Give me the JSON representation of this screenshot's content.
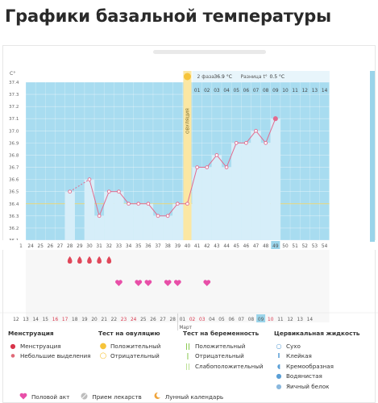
{
  "page": {
    "title": "Графики базальной температуры"
  },
  "header": {
    "phase_label": "2 фаза",
    "phase_temp": "36.9 °C",
    "diff_label": "Разница t°",
    "diff_value": "0.5 °C",
    "unit": "C°",
    "ovulation_label": "ОВУЛЯЦИЯ"
  },
  "colors": {
    "cycle_bg": "#a8dcf0",
    "bar_fill": "#d6eef9",
    "ovulation": "#fbe7a3",
    "line": "#e26b8e",
    "period": "#e0485a",
    "sex": "#e84fa8",
    "coverline": "#e9d77a"
  },
  "chart_data": {
    "type": "line",
    "ylabel": "C°",
    "ylim": [
      36.1,
      37.4
    ],
    "yticks": [
      "37.4",
      "37.3",
      "37.2",
      "37.1",
      "37.0",
      "36.9",
      "36.8",
      "36.7",
      "36.6",
      "36.5",
      "36.4",
      "36.3",
      "36.2",
      "36.1"
    ],
    "cycle_days": [
      "24",
      "25",
      "26",
      "27",
      "28",
      "29",
      "30",
      "31",
      "32",
      "33",
      "34",
      "35",
      "36",
      "37",
      "38",
      "39",
      "40",
      "41",
      "42",
      "43",
      "44",
      "45",
      "46",
      "47",
      "48",
      "49",
      "50",
      "51",
      "52",
      "53",
      "54"
    ],
    "phase_days": [
      "01",
      "02",
      "03",
      "04",
      "05",
      "06",
      "07",
      "08",
      "09",
      "10",
      "11",
      "12",
      "13",
      "14"
    ],
    "highlight_day": "49",
    "ovulation_day": "40",
    "series": [
      {
        "x": [
          "28",
          "29",
          "30",
          "31",
          "32",
          "33",
          "34",
          "35",
          "36",
          "37",
          "38",
          "39",
          "40",
          "41",
          "42",
          "43",
          "44",
          "45",
          "46",
          "47",
          "48",
          "49"
        ],
        "values": [
          36.5,
          null,
          36.6,
          36.3,
          36.5,
          36.5,
          36.4,
          36.4,
          36.4,
          36.3,
          36.3,
          36.4,
          36.4,
          36.7,
          36.7,
          36.8,
          36.7,
          36.9,
          36.9,
          37.0,
          36.9,
          37.1
        ]
      }
    ],
    "coverline": 36.4,
    "period_days": [
      "28",
      "29",
      "30",
      "31",
      "32"
    ],
    "sex_days": [
      "33",
      "35",
      "36",
      "38",
      "39",
      "42"
    ],
    "date_labels": [
      {
        "t": "12",
        "c": "n"
      },
      {
        "t": "13",
        "c": "n"
      },
      {
        "t": "14",
        "c": "n"
      },
      {
        "t": "15",
        "c": "n"
      },
      {
        "t": "16",
        "c": "r"
      },
      {
        "t": "17",
        "c": "r"
      },
      {
        "t": "18",
        "c": "n"
      },
      {
        "t": "19",
        "c": "n"
      },
      {
        "t": "20",
        "c": "n"
      },
      {
        "t": "21",
        "c": "n"
      },
      {
        "t": "22",
        "c": "n"
      },
      {
        "t": "23",
        "c": "r"
      },
      {
        "t": "24",
        "c": "r"
      },
      {
        "t": "25",
        "c": "n"
      },
      {
        "t": "26",
        "c": "n"
      },
      {
        "t": "27",
        "c": "n"
      },
      {
        "t": "28",
        "c": "n"
      },
      {
        "t": "01",
        "c": "n"
      },
      {
        "t": "02",
        "c": "r"
      },
      {
        "t": "03",
        "c": "r"
      },
      {
        "t": "04",
        "c": "n"
      },
      {
        "t": "05",
        "c": "n"
      },
      {
        "t": "06",
        "c": "n"
      },
      {
        "t": "07",
        "c": "n"
      },
      {
        "t": "08",
        "c": "n"
      },
      {
        "t": "09",
        "c": "h"
      },
      {
        "t": "10",
        "c": "r"
      },
      {
        "t": "11",
        "c": "n"
      },
      {
        "t": "12",
        "c": "n"
      },
      {
        "t": "13",
        "c": "n"
      },
      {
        "t": "14",
        "c": "n"
      }
    ],
    "month_label": "Март"
  },
  "legend": {
    "menstruation": {
      "title": "Менструация",
      "items": [
        "Менструация",
        "Небольшие выделения"
      ]
    },
    "ovulation_test": {
      "title": "Тест на овуляцию",
      "items": [
        "Положительный",
        "Отрицательный"
      ]
    },
    "pregnancy_test": {
      "title": "Тест на беременность",
      "items": [
        "Положительный",
        "Отрицательный",
        "Слабоположительный"
      ]
    },
    "cervical": {
      "title": "Цервикальная жидкость",
      "items": [
        "Сухо",
        "Клейкая",
        "Кремообразная",
        "Водянистая",
        "Яичный белок"
      ]
    },
    "bottom": [
      "Половой акт",
      "Прием лекарств",
      "Лунный календарь"
    ]
  }
}
